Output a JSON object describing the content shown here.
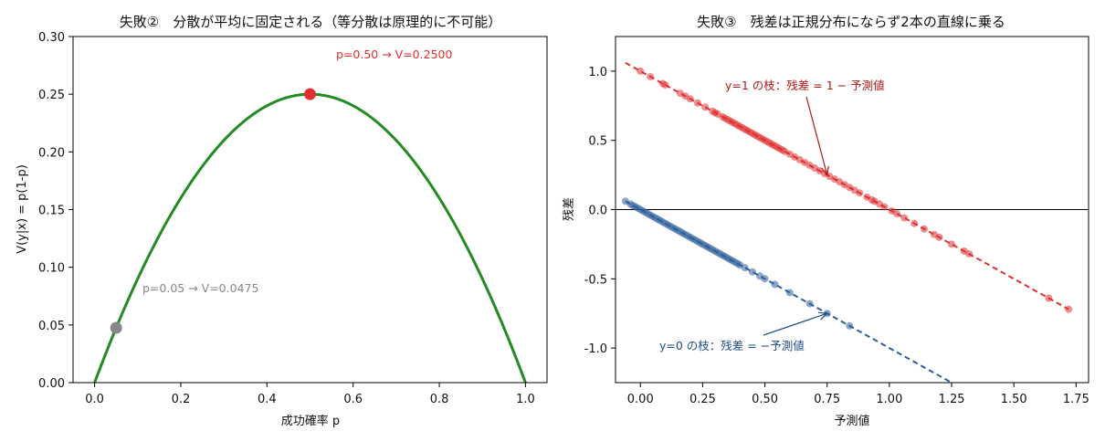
{
  "chart_data": [
    {
      "type": "line",
      "title": "失敗②　分散が平均に固定される（等分散は原理的に不可能）",
      "xlabel": "成功確率 p",
      "ylabel": "V(y|x) = p(1-p)",
      "xlim": [
        -0.05,
        1.05
      ],
      "ylim": [
        0.0,
        0.3
      ],
      "xticks": [
        "0.0",
        "0.2",
        "0.4",
        "0.6",
        "0.8",
        "1.0"
      ],
      "yticks": [
        "0.00",
        "0.05",
        "0.10",
        "0.15",
        "0.20",
        "0.25",
        "0.30"
      ],
      "series": [
        {
          "function": "p*(1-p)",
          "x_range": [
            0.0,
            1.0
          ],
          "color": "#228b22"
        }
      ],
      "points": [
        {
          "x": 0.5,
          "y": 0.25,
          "color": "#e03030",
          "label": "p=0.50 → V=0.2500"
        },
        {
          "x": 0.05,
          "y": 0.0475,
          "color": "#888888",
          "label": "p=0.05 → V=0.0475"
        }
      ],
      "grid": false
    },
    {
      "type": "scatter",
      "title": "失敗③　残差は正規分布にならず2本の直線に乗る",
      "xlabel": "予測値",
      "ylabel": "残差",
      "xlim": [
        -0.1,
        1.8
      ],
      "ylim": [
        -1.25,
        1.25
      ],
      "xticks": [
        "0.00",
        "0.25",
        "0.50",
        "0.75",
        "1.00",
        "1.25",
        "1.50",
        "1.75"
      ],
      "yticks": [
        "-1.0",
        "-0.5",
        "0.0",
        "0.5",
        "1.0"
      ],
      "hline": 0.0,
      "series": [
        {
          "color": "#e03030",
          "relation": "residual = 1 - predicted",
          "line_x": [
            -0.06,
            1.72
          ],
          "x": [
            0.0,
            0.04,
            0.09,
            0.1,
            0.16,
            0.18,
            0.2,
            0.23,
            0.26,
            0.29,
            0.3,
            0.31,
            0.33,
            0.34,
            0.35,
            0.36,
            0.37,
            0.38,
            0.39,
            0.4,
            0.41,
            0.42,
            0.43,
            0.44,
            0.45,
            0.46,
            0.47,
            0.48,
            0.49,
            0.5,
            0.51,
            0.52,
            0.53,
            0.54,
            0.55,
            0.56,
            0.57,
            0.58,
            0.6,
            0.62,
            0.64,
            0.66,
            0.68,
            0.7,
            0.72,
            0.74,
            0.76,
            0.78,
            0.8,
            0.82,
            0.84,
            0.86,
            0.88,
            0.91,
            0.93,
            0.94,
            0.96,
            0.98,
            1.01,
            1.03,
            1.06,
            1.1,
            1.14,
            1.18,
            1.2,
            1.25,
            1.3,
            1.32,
            1.64,
            1.72
          ]
        },
        {
          "color": "#2e5f99",
          "relation": "residual = -predicted",
          "line_x": [
            -0.06,
            1.25
          ],
          "x": [
            -0.06,
            -0.04,
            -0.03,
            -0.02,
            -0.01,
            0.0,
            0.01,
            0.02,
            0.03,
            0.04,
            0.05,
            0.06,
            0.07,
            0.08,
            0.09,
            0.1,
            0.11,
            0.12,
            0.13,
            0.14,
            0.15,
            0.16,
            0.17,
            0.18,
            0.19,
            0.2,
            0.21,
            0.22,
            0.23,
            0.24,
            0.25,
            0.26,
            0.27,
            0.28,
            0.29,
            0.3,
            0.31,
            0.32,
            0.33,
            0.34,
            0.35,
            0.36,
            0.37,
            0.38,
            0.39,
            0.4,
            0.42,
            0.45,
            0.48,
            0.5,
            0.54,
            0.6,
            0.68,
            0.75,
            0.84
          ]
        }
      ],
      "annotations": [
        {
          "text": "y=1 の枝：残差 = 1 − 予測値",
          "arrow_to": [
            0.75,
            0.25
          ],
          "color": "#b01818"
        },
        {
          "text": "y=0 の枝：残差 = −予測値",
          "arrow_to": [
            0.75,
            -0.75
          ],
          "color": "#1f4e85"
        }
      ],
      "grid": false
    }
  ]
}
